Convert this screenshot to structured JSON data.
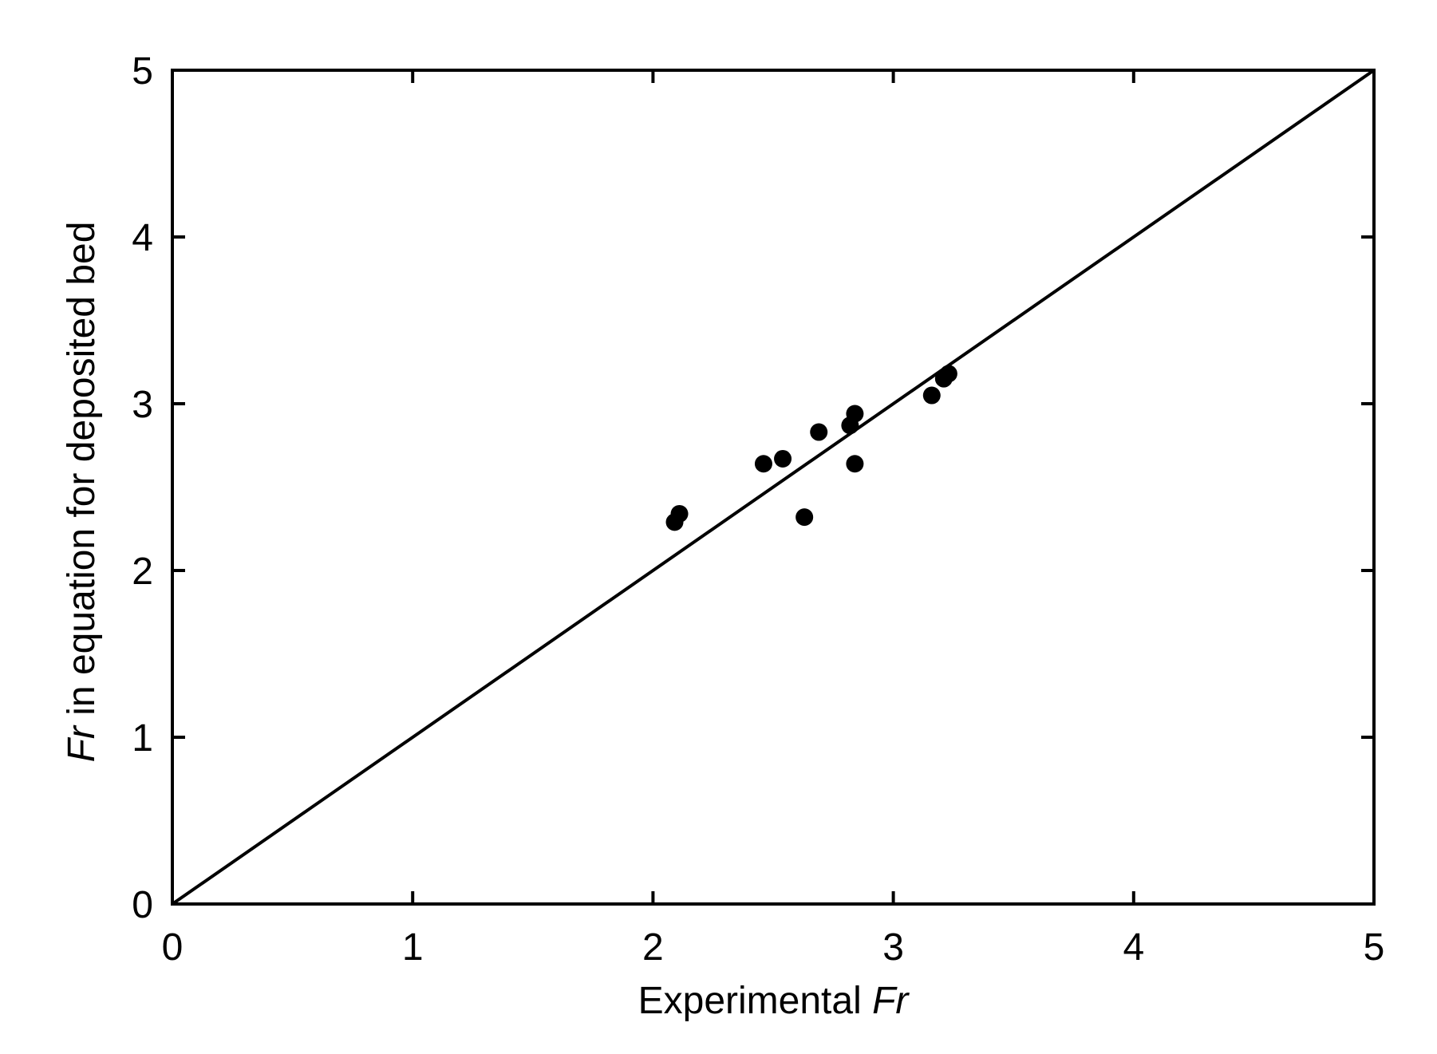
{
  "chart_data": {
    "type": "scatter",
    "title": "",
    "xlabel": {
      "text": "Experimental",
      "italic_suffix": "Fr"
    },
    "ylabel": {
      "italic_prefix": "Fr",
      "text": " in equation for deposited bed"
    },
    "xlim": [
      0,
      5
    ],
    "ylim": [
      0,
      5
    ],
    "xticks": [
      0,
      1,
      2,
      3,
      4,
      5
    ],
    "yticks": [
      0,
      1,
      2,
      3,
      4,
      5
    ],
    "xtick_labels": [
      "0",
      "1",
      "2",
      "3",
      "4",
      "5"
    ],
    "ytick_labels": [
      "0",
      "1",
      "2",
      "3",
      "4",
      "5"
    ],
    "grid": false,
    "reference_line": {
      "type": "y = x",
      "from": [
        0,
        0
      ],
      "to": [
        5,
        5
      ]
    },
    "series": [
      {
        "marker": "filled-circle",
        "color": "#000000",
        "points": [
          {
            "x": 2.09,
            "y": 2.29
          },
          {
            "x": 2.11,
            "y": 2.34
          },
          {
            "x": 2.46,
            "y": 2.64
          },
          {
            "x": 2.54,
            "y": 2.67
          },
          {
            "x": 2.63,
            "y": 2.32
          },
          {
            "x": 2.69,
            "y": 2.83
          },
          {
            "x": 2.82,
            "y": 2.87
          },
          {
            "x": 2.84,
            "y": 2.94
          },
          {
            "x": 2.84,
            "y": 2.64
          },
          {
            "x": 3.16,
            "y": 3.05
          },
          {
            "x": 3.21,
            "y": 3.15
          },
          {
            "x": 3.23,
            "y": 3.18
          }
        ]
      }
    ]
  }
}
